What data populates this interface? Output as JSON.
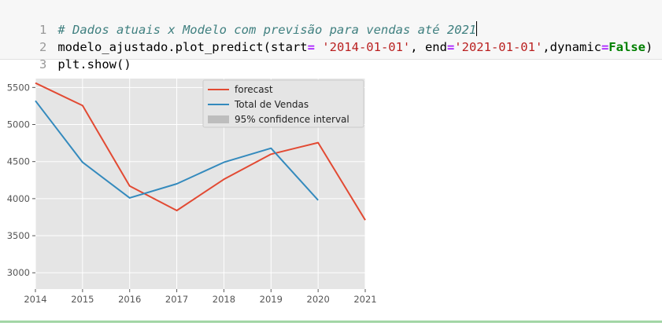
{
  "code": {
    "line_numbers": [
      "1",
      "2",
      "3"
    ],
    "comment": "# Dados atuais x Modelo com previsão para vendas até 2021",
    "line2": {
      "call": "modelo_ajustado.plot_predict(start",
      "eq1": "=",
      "start_value": " '2014-01-01'",
      "mid": ", end",
      "eq2": "=",
      "end_value": "'2021-01-01'",
      "dyn": ",dynamic",
      "eq3": "=",
      "false_kw": "False",
      "close": ")"
    },
    "line3": "plt.show()"
  },
  "colors": {
    "forecast": "#e24a33",
    "total_vendas": "#348abd",
    "confidence": "#bdbdbd",
    "axes_bg": "#e5e5e5",
    "grid": "#ffffff"
  },
  "chart_data": {
    "type": "line",
    "x_labels": [
      "2014",
      "2015",
      "2016",
      "2017",
      "2018",
      "2019",
      "2020",
      "2021"
    ],
    "y_ticks": [
      3000,
      3500,
      4000,
      4500,
      5000,
      5500
    ],
    "xlim": [
      2014,
      2021
    ],
    "ylim": [
      2780,
      5620
    ],
    "grid": true,
    "legend_position": "top-center",
    "series": [
      {
        "name": "forecast",
        "color": "#e24a33",
        "x": [
          2014,
          2015,
          2016,
          2017,
          2018,
          2019,
          2020,
          2021
        ],
        "y": [
          5560,
          5255,
          4170,
          3840,
          4260,
          4600,
          4755,
          3710
        ]
      },
      {
        "name": "Total de Vendas",
        "color": "#348abd",
        "x": [
          2014,
          2015,
          2016,
          2017,
          2018,
          2019,
          2020
        ],
        "y": [
          5320,
          4490,
          4010,
          4200,
          4490,
          4680,
          3980
        ]
      }
    ],
    "legend": [
      {
        "label": "forecast",
        "kind": "line",
        "color": "#e24a33"
      },
      {
        "label": "Total de Vendas",
        "kind": "line",
        "color": "#348abd"
      },
      {
        "label": "95% confidence interval",
        "kind": "patch",
        "color": "#bdbdbd"
      }
    ]
  }
}
